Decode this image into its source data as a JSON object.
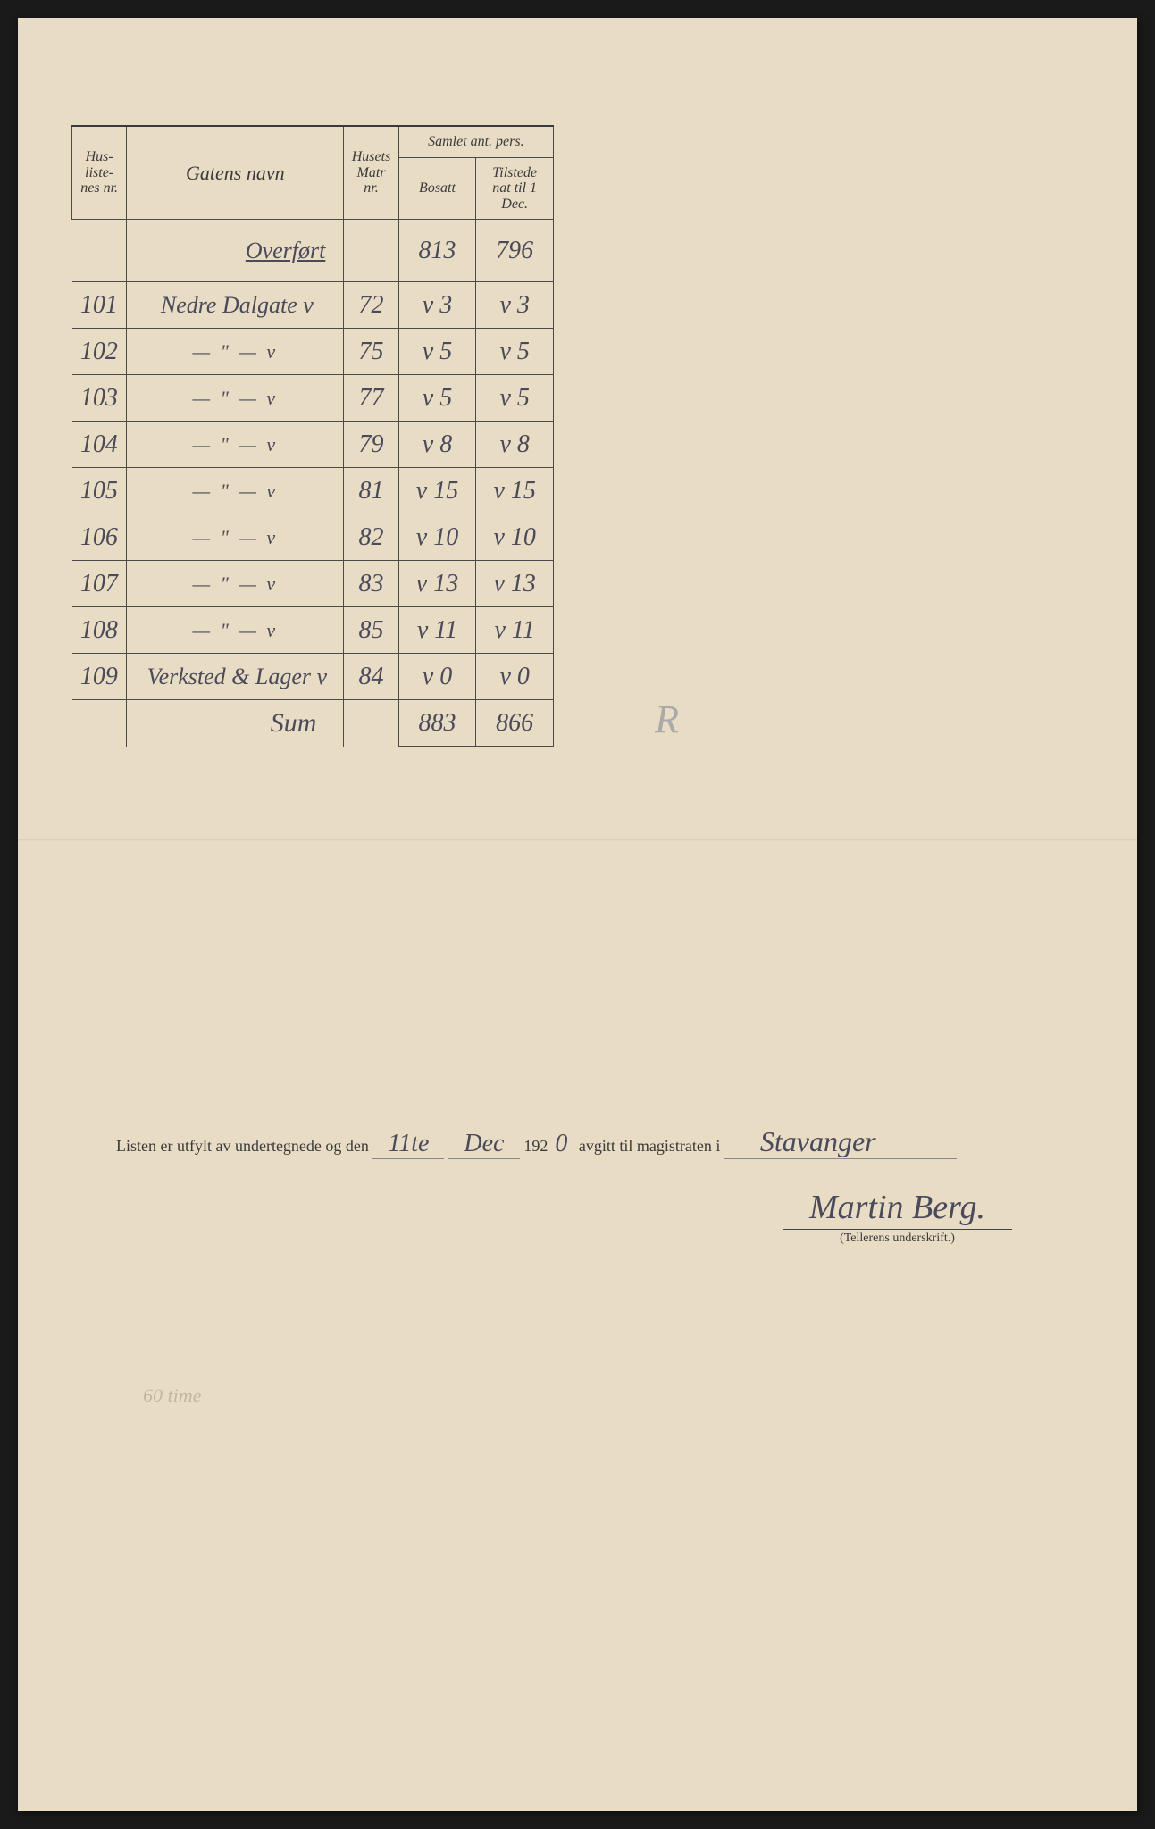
{
  "table": {
    "headers": {
      "col1": "Hus-liste-nes nr.",
      "col2": "Gatens navn",
      "col3": "Husets Matr nr.",
      "col4_group": "Samlet ant. pers.",
      "col4a": "Bosatt",
      "col4b": "Tilstede nat til 1 Dec."
    },
    "overford": {
      "label": "Overført",
      "bosatt": "813",
      "tilstede": "796"
    },
    "rows": [
      {
        "num": "101",
        "name": "Nedre Dalgate",
        "mark": "v",
        "matr": "72",
        "bosatt": "v 3",
        "tilstede": "v 3"
      },
      {
        "num": "102",
        "name": "— \" —",
        "mark": "v",
        "matr": "75",
        "bosatt": "v 5",
        "tilstede": "v 5"
      },
      {
        "num": "103",
        "name": "— \" —",
        "mark": "v",
        "matr": "77",
        "bosatt": "v 5",
        "tilstede": "v 5"
      },
      {
        "num": "104",
        "name": "— \" —",
        "mark": "v",
        "matr": "79",
        "bosatt": "v 8",
        "tilstede": "v 8"
      },
      {
        "num": "105",
        "name": "— \" —",
        "mark": "v",
        "matr": "81",
        "bosatt": "v 15",
        "tilstede": "v 15"
      },
      {
        "num": "106",
        "name": "— \" —",
        "mark": "v",
        "matr": "82",
        "bosatt": "v 10",
        "tilstede": "v 10"
      },
      {
        "num": "107",
        "name": "— \" —",
        "mark": "v",
        "matr": "83",
        "bosatt": "v 13",
        "tilstede": "v 13"
      },
      {
        "num": "108",
        "name": "— \" —",
        "mark": "v",
        "matr": "85",
        "bosatt": "v 11",
        "tilstede": "v 11"
      },
      {
        "num": "109",
        "name": "Verksted & Lager",
        "mark": "v",
        "matr": "84",
        "bosatt": "v 0",
        "tilstede": "v 0"
      }
    ],
    "sum": {
      "label": "Sum",
      "bosatt": "883",
      "tilstede": "866"
    }
  },
  "margin_note": "R",
  "footer": {
    "prefix": "Listen er utfylt av undertegnede og den",
    "date_day": "11te",
    "date_month": "Dec",
    "year_prefix": "192",
    "year_digit": "0",
    "middle": "avgitt til magistraten i",
    "place": "Stavanger",
    "signature": "Martin Berg.",
    "signature_label": "(Tellerens underskrift.)"
  },
  "faint_note": "60 time",
  "colors": {
    "paper": "#e8dcc4",
    "ink": "#4a4a5a",
    "print": "#3a3a3a",
    "border": "#4a4a4a"
  }
}
